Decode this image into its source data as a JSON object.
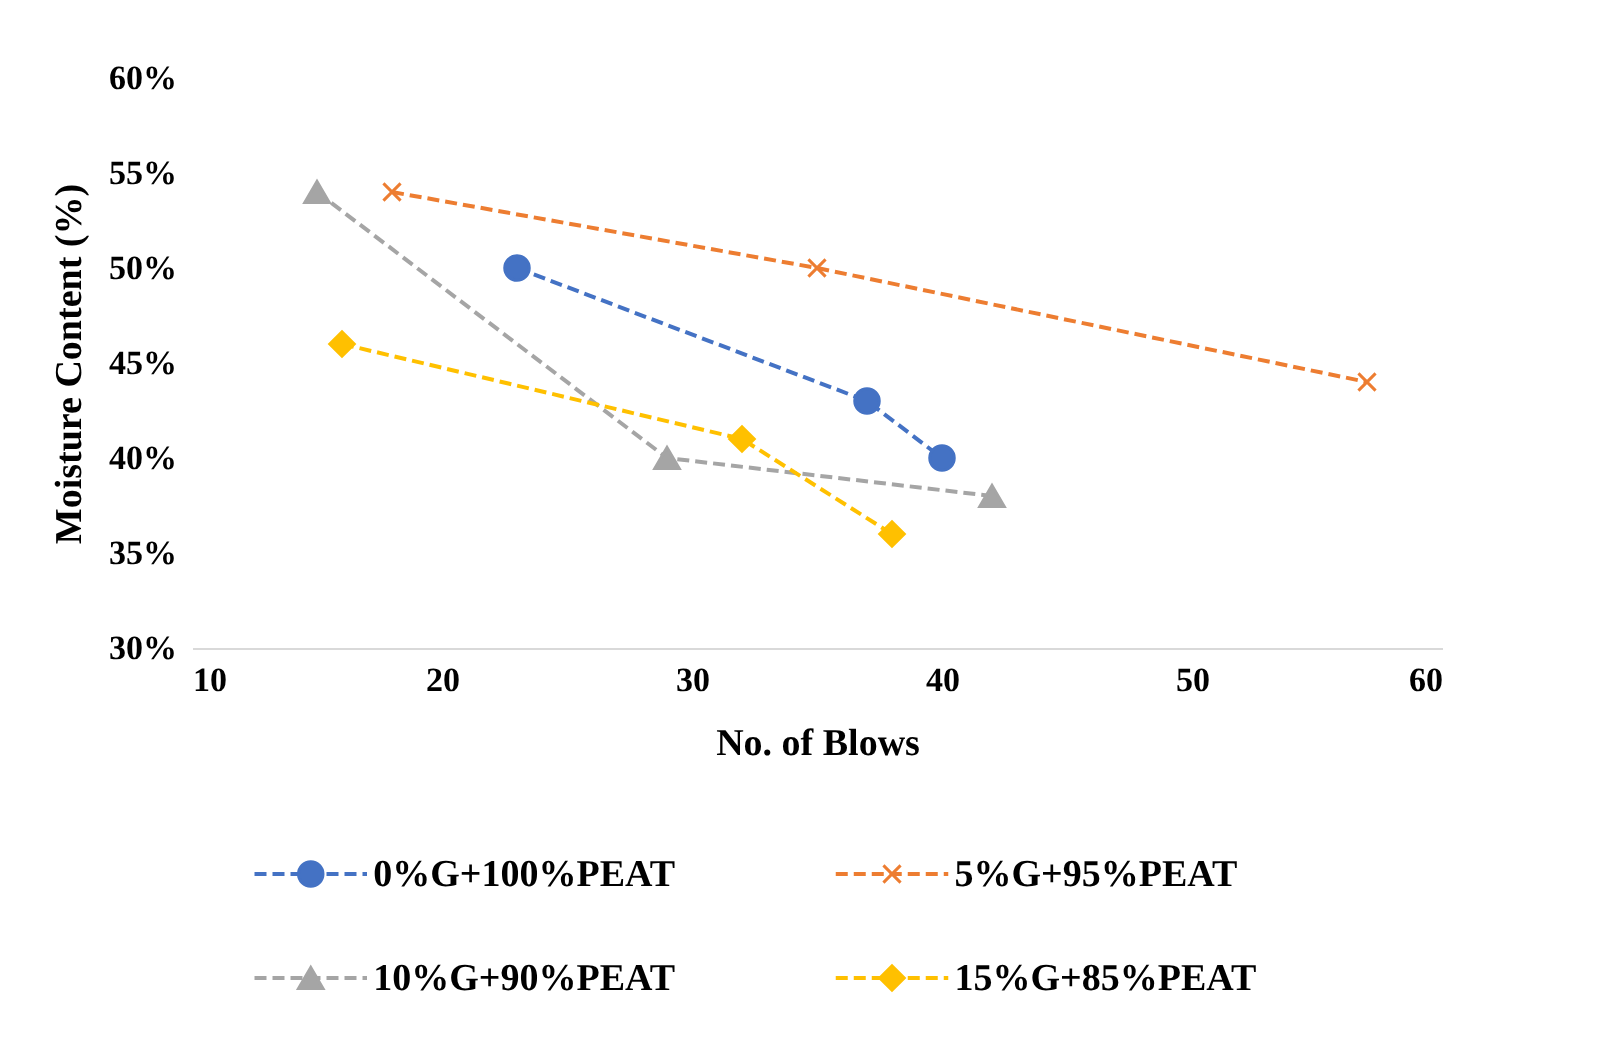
{
  "chart_data": {
    "type": "line",
    "xlabel": "No. of Blows",
    "ylabel": "Moisture Content (%)",
    "xlim": [
      10,
      60
    ],
    "xticks": [
      10,
      20,
      30,
      40,
      50,
      60
    ],
    "ylim": [
      30,
      60
    ],
    "yticks": [
      {
        "value": 30,
        "label": "30%"
      },
      {
        "value": 35,
        "label": "35%"
      },
      {
        "value": 40,
        "label": "40%"
      },
      {
        "value": 45,
        "label": "45%"
      },
      {
        "value": 50,
        "label": "50%"
      },
      {
        "value": 55,
        "label": "55%"
      },
      {
        "value": 60,
        "label": "60%"
      }
    ],
    "grid": false,
    "legend": "bottom",
    "line_style": "dashed",
    "series": [
      {
        "name": "0%G+100%PEAT",
        "color": "#4472c4",
        "marker": "circle",
        "x": [
          23,
          37,
          40
        ],
        "values": [
          50,
          43,
          40
        ]
      },
      {
        "name": "5%G+95%PEAT",
        "color": "#ed7d31",
        "marker": "cross",
        "x": [
          18,
          35,
          57
        ],
        "values": [
          54,
          50,
          44
        ]
      },
      {
        "name": "10%G+90%PEAT",
        "color": "#a5a5a5",
        "marker": "triangle",
        "x": [
          15,
          29,
          42
        ],
        "values": [
          54,
          40,
          38
        ]
      },
      {
        "name": "15%G+85%PEAT",
        "color": "#ffc000",
        "marker": "diamond",
        "x": [
          16,
          32,
          38
        ],
        "values": [
          46,
          41,
          36
        ]
      }
    ]
  }
}
